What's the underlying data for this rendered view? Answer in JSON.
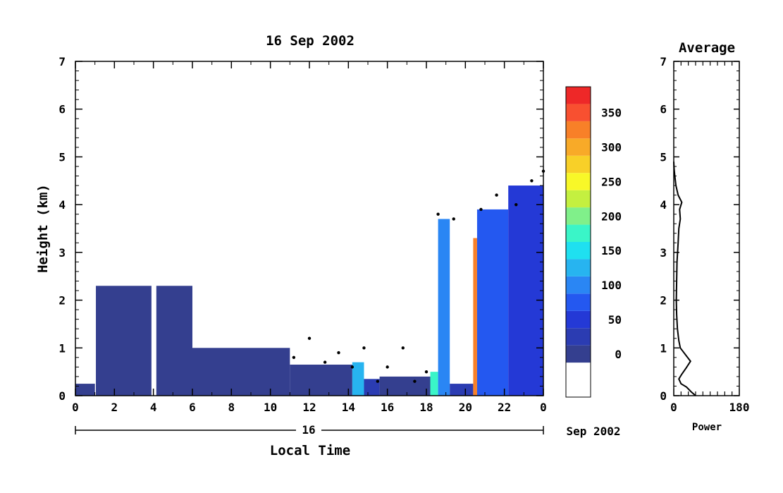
{
  "chart_data": [
    {
      "type": "heatmap",
      "title": "16 Sep 2002",
      "xlabel": "Local Time",
      "ylabel": "Height (km)",
      "x_ticks": [
        "0",
        "2",
        "4",
        "6",
        "8",
        "10",
        "12",
        "14",
        "16",
        "18",
        "20",
        "22",
        "0"
      ],
      "xlim": [
        0,
        24
      ],
      "y_ticks": [
        0,
        1,
        2,
        3,
        4,
        5,
        6,
        7
      ],
      "ylim": [
        0,
        7
      ],
      "date_axis": {
        "day_label": "16",
        "month_label": "Sep 2002"
      },
      "colorbar": {
        "ticks": [
          0,
          50,
          100,
          150,
          200,
          250,
          300,
          350
        ],
        "levels": [
          {
            "from": -50,
            "to": 0,
            "color": "#ffffff"
          },
          {
            "from": 0,
            "to": 25,
            "color": "#343f8f"
          },
          {
            "from": 25,
            "to": 50,
            "color": "#2b3cb2"
          },
          {
            "from": 50,
            "to": 75,
            "color": "#2439d6"
          },
          {
            "from": 75,
            "to": 100,
            "color": "#2458f0"
          },
          {
            "from": 100,
            "to": 125,
            "color": "#2a86f4"
          },
          {
            "from": 125,
            "to": 150,
            "color": "#27b4f0"
          },
          {
            "from": 150,
            "to": 175,
            "color": "#1fe0f0"
          },
          {
            "from": 175,
            "to": 200,
            "color": "#3af5c8"
          },
          {
            "from": 200,
            "to": 225,
            "color": "#80f08a"
          },
          {
            "from": 225,
            "to": 250,
            "color": "#c4f040"
          },
          {
            "from": 250,
            "to": 275,
            "color": "#f8f828"
          },
          {
            "from": 275,
            "to": 300,
            "color": "#f8d028"
          },
          {
            "from": 300,
            "to": 325,
            "color": "#f8aa28"
          },
          {
            "from": 325,
            "to": 350,
            "color": "#f88028"
          },
          {
            "from": 350,
            "to": 375,
            "color": "#f85030"
          },
          {
            "from": 375,
            "to": 400,
            "color": "#ee2828"
          }
        ]
      },
      "regions": [
        {
          "t0": 0.0,
          "t1": 1.0,
          "h0": 0.0,
          "h1": 0.25,
          "level": 1
        },
        {
          "t0": 1.05,
          "t1": 3.9,
          "h0": 0.0,
          "h1": 2.3,
          "level": 1
        },
        {
          "t0": 4.15,
          "t1": 6.0,
          "h0": 0.0,
          "h1": 2.3,
          "level": 1
        },
        {
          "t0": 6.0,
          "t1": 11.0,
          "h0": 0.0,
          "h1": 1.0,
          "level": 1
        },
        {
          "t0": 11.0,
          "t1": 14.2,
          "h0": 0.0,
          "h1": 0.65,
          "level": 1
        },
        {
          "t0": 14.2,
          "t1": 14.8,
          "h0": 0.0,
          "h1": 0.7,
          "level": 6
        },
        {
          "t0": 14.8,
          "t1": 15.6,
          "h0": 0.0,
          "h1": 0.35,
          "level": 2
        },
        {
          "t0": 15.6,
          "t1": 18.2,
          "h0": 0.0,
          "h1": 0.4,
          "level": 1
        },
        {
          "t0": 18.2,
          "t1": 18.6,
          "h0": 0.0,
          "h1": 0.5,
          "level": 8
        },
        {
          "t0": 18.6,
          "t1": 19.2,
          "h0": 0.0,
          "h1": 3.7,
          "level": 5
        },
        {
          "t0": 19.2,
          "t1": 20.4,
          "h0": 0.0,
          "h1": 0.25,
          "level": 2
        },
        {
          "t0": 20.4,
          "t1": 20.6,
          "h0": 0.0,
          "h1": 3.3,
          "level": 14
        },
        {
          "t0": 20.6,
          "t1": 22.2,
          "h0": 0.0,
          "h1": 3.9,
          "level": 4
        },
        {
          "t0": 22.2,
          "t1": 24.0,
          "h0": 0.0,
          "h1": 4.4,
          "level": 3
        }
      ],
      "top_boundary": [
        {
          "t": 11.2,
          "h": 0.8
        },
        {
          "t": 12.0,
          "h": 1.2
        },
        {
          "t": 12.8,
          "h": 0.7
        },
        {
          "t": 13.5,
          "h": 0.9
        },
        {
          "t": 14.2,
          "h": 0.6
        },
        {
          "t": 14.8,
          "h": 1.0
        },
        {
          "t": 15.5,
          "h": 0.3
        },
        {
          "t": 16.0,
          "h": 0.6
        },
        {
          "t": 16.8,
          "h": 1.0
        },
        {
          "t": 17.4,
          "h": 0.3
        },
        {
          "t": 18.0,
          "h": 0.5
        },
        {
          "t": 18.6,
          "h": 3.8
        },
        {
          "t": 19.4,
          "h": 3.7
        },
        {
          "t": 20.8,
          "h": 3.9
        },
        {
          "t": 21.6,
          "h": 4.2
        },
        {
          "t": 22.6,
          "h": 4.0
        },
        {
          "t": 23.4,
          "h": 4.5
        },
        {
          "t": 24.0,
          "h": 4.7
        }
      ]
    },
    {
      "type": "line",
      "title": "Average",
      "xlabel": "Power",
      "x_ticks": [
        0,
        180
      ],
      "xlim": [
        0,
        180
      ],
      "y_ticks": [
        0,
        1,
        2,
        3,
        4,
        5,
        6,
        7
      ],
      "ylim": [
        0,
        7
      ],
      "series": [
        {
          "points": [
            [
              60,
              0.0
            ],
            [
              48,
              0.08
            ],
            [
              35,
              0.18
            ],
            [
              20,
              0.25
            ],
            [
              14,
              0.35
            ],
            [
              22,
              0.45
            ],
            [
              34,
              0.58
            ],
            [
              46,
              0.72
            ],
            [
              36,
              0.82
            ],
            [
              26,
              0.92
            ],
            [
              18,
              1.0
            ],
            [
              14,
              1.15
            ],
            [
              10,
              1.4
            ],
            [
              8,
              1.7
            ],
            [
              7,
              2.0
            ],
            [
              8,
              2.4
            ],
            [
              9,
              2.8
            ],
            [
              12,
              3.2
            ],
            [
              14,
              3.5
            ],
            [
              18,
              3.7
            ],
            [
              16,
              3.9
            ],
            [
              22,
              4.05
            ],
            [
              12,
              4.2
            ],
            [
              6,
              4.4
            ],
            [
              3,
              4.6
            ],
            [
              1,
              4.75
            ],
            [
              0,
              4.9
            ]
          ]
        }
      ]
    }
  ]
}
